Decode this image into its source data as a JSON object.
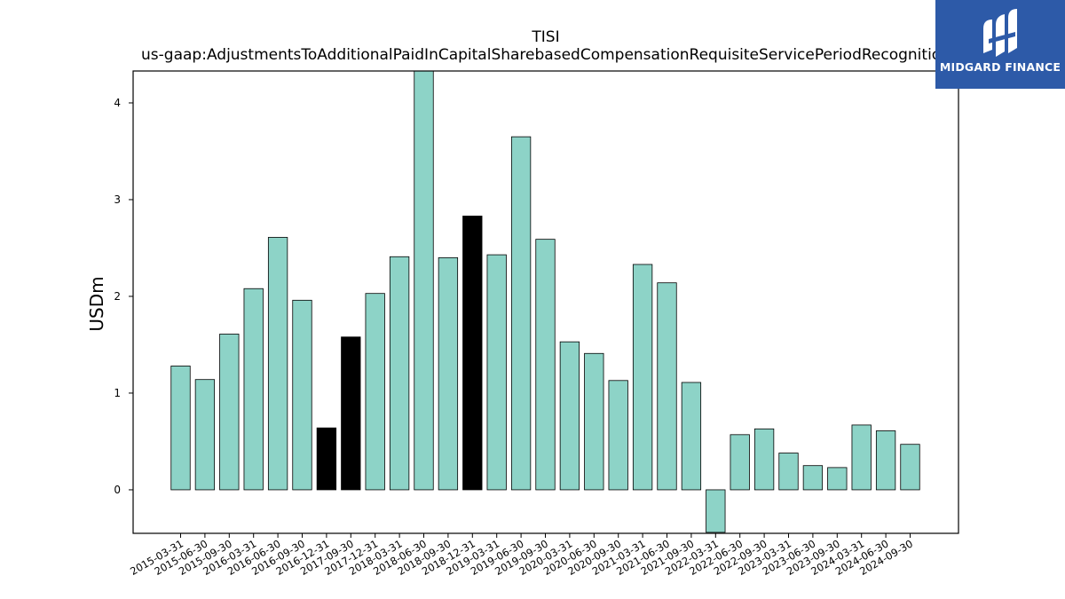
{
  "chart_data": {
    "type": "bar",
    "title": "TISI",
    "subtitle": "us-gaap:AdjustmentsToAdditionalPaidInCapitalSharebasedCompensationRequisiteServicePeriodRecognition",
    "xlabel": "",
    "ylabel": "USDm",
    "ylim": [
      -0.45,
      4.33
    ],
    "yticks": [
      0,
      1,
      2,
      3,
      4
    ],
    "grid": false,
    "categories": [
      "2015-03-31",
      "2015-06-30",
      "2015-09-30",
      "2016-03-31",
      "2016-06-30",
      "2016-09-30",
      "2016-12-31",
      "2017-09-30",
      "2017-12-31",
      "2018-03-31",
      "2018-06-30",
      "2018-09-30",
      "2018-12-31",
      "2019-03-31",
      "2019-06-30",
      "2019-09-30",
      "2020-03-31",
      "2020-06-30",
      "2020-09-30",
      "2021-03-31",
      "2021-06-30",
      "2021-09-30",
      "2022-03-31",
      "2022-06-30",
      "2022-09-30",
      "2023-03-31",
      "2023-06-30",
      "2023-09-30",
      "2024-03-31",
      "2024-06-30",
      "2024-09-30"
    ],
    "values": [
      1.28,
      1.14,
      1.61,
      2.08,
      2.61,
      1.96,
      0.64,
      1.58,
      2.03,
      2.41,
      4.35,
      2.4,
      2.83,
      2.43,
      3.65,
      2.59,
      1.53,
      1.41,
      1.13,
      2.33,
      2.14,
      1.11,
      -0.44,
      0.57,
      0.63,
      0.38,
      0.25,
      0.23,
      0.67,
      0.61,
      0.47
    ],
    "highlighted": [
      "2016-12-31",
      "2017-09-30",
      "2018-12-31"
    ],
    "colors": {
      "bar": "#8dd3c7",
      "highlight": "#000000",
      "edge": "#000000"
    }
  },
  "logo": {
    "text": "MIDGARD FINANCE",
    "background": "#2d5aa8"
  }
}
